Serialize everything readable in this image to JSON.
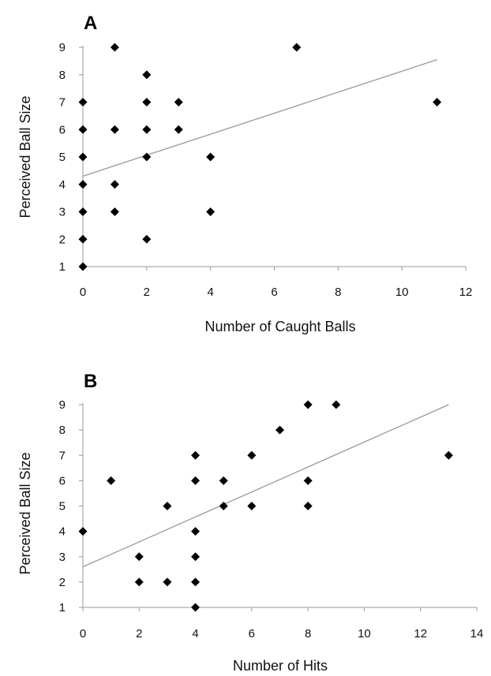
{
  "chart_data": [
    {
      "type": "scatter",
      "panel_label": "A",
      "xlabel": "Number of Caught Balls",
      "ylabel": "Perceived Ball Size",
      "xlim": [
        0,
        12
      ],
      "ylim": [
        1,
        9
      ],
      "xticks": [
        0,
        2,
        4,
        6,
        8,
        10,
        12
      ],
      "yticks": [
        1,
        2,
        3,
        4,
        5,
        6,
        7,
        8,
        9
      ],
      "grid": false,
      "marker": "diamond",
      "marker_color": "#000000",
      "trendline_color": "#999999",
      "points": [
        [
          0,
          1
        ],
        [
          0,
          2
        ],
        [
          0,
          3
        ],
        [
          0,
          4
        ],
        [
          0,
          5
        ],
        [
          0,
          6
        ],
        [
          0,
          7
        ],
        [
          1,
          9
        ],
        [
          1,
          6
        ],
        [
          1,
          4
        ],
        [
          1,
          3
        ],
        [
          2,
          8
        ],
        [
          2,
          7
        ],
        [
          2,
          6
        ],
        [
          2,
          5
        ],
        [
          2,
          2
        ],
        [
          3,
          7
        ],
        [
          3,
          6
        ],
        [
          4,
          5
        ],
        [
          4,
          3
        ],
        [
          6.7,
          9
        ],
        [
          11.1,
          7
        ]
      ],
      "trendline": [
        [
          0,
          4.3
        ],
        [
          11.1,
          8.55
        ]
      ]
    },
    {
      "type": "scatter",
      "panel_label": "B",
      "xlabel": "Number of Hits",
      "ylabel": "Perceived Ball Size",
      "xlim": [
        0,
        14
      ],
      "ylim": [
        1,
        9
      ],
      "xticks": [
        0,
        2,
        4,
        6,
        8,
        10,
        12,
        14
      ],
      "yticks": [
        1,
        2,
        3,
        4,
        5,
        6,
        7,
        8,
        9
      ],
      "grid": false,
      "marker": "diamond",
      "marker_color": "#000000",
      "trendline_color": "#999999",
      "points": [
        [
          0,
          4
        ],
        [
          1,
          6
        ],
        [
          2,
          3
        ],
        [
          2,
          2
        ],
        [
          3,
          5
        ],
        [
          3,
          2
        ],
        [
          4,
          7
        ],
        [
          4,
          6
        ],
        [
          4,
          4
        ],
        [
          4,
          3
        ],
        [
          4,
          2
        ],
        [
          4,
          1
        ],
        [
          5,
          6
        ],
        [
          5,
          5
        ],
        [
          6,
          7
        ],
        [
          6,
          5
        ],
        [
          7,
          8
        ],
        [
          8,
          9
        ],
        [
          8,
          6
        ],
        [
          8,
          5
        ],
        [
          9,
          9
        ],
        [
          13,
          7
        ]
      ],
      "trendline": [
        [
          0,
          2.6
        ],
        [
          13,
          9
        ]
      ]
    }
  ]
}
